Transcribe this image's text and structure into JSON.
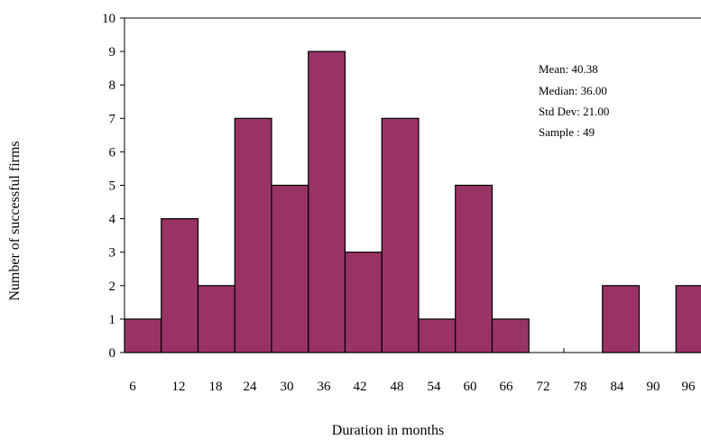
{
  "chart_data": {
    "type": "bar",
    "title": "",
    "xlabel": "Duration in months",
    "ylabel": "Number of successful firms",
    "ylim": [
      0,
      10
    ],
    "yticks": [
      "0",
      "1",
      "2",
      "3",
      "4",
      "5",
      "6",
      "7",
      "8",
      "9",
      "10"
    ],
    "xtick_labels": [
      "6",
      "12",
      "18",
      "24",
      "30",
      "36",
      "42",
      "48",
      "54",
      "60",
      "66",
      "72",
      "78",
      "84",
      "90",
      "96"
    ],
    "bars": [
      {
        "bin": 1,
        "value": 1
      },
      {
        "bin": 2,
        "value": 4
      },
      {
        "bin": 3,
        "value": 2
      },
      {
        "bin": 4,
        "value": 7
      },
      {
        "bin": 5,
        "value": 5
      },
      {
        "bin": 6,
        "value": 9
      },
      {
        "bin": 7,
        "value": 3
      },
      {
        "bin": 8,
        "value": 7
      },
      {
        "bin": 9,
        "value": 1
      },
      {
        "bin": 10,
        "value": 5
      },
      {
        "bin": 11,
        "value": 1
      },
      {
        "bin": 12,
        "value": 0
      },
      {
        "bin": 13,
        "value": 0
      },
      {
        "bin": 14,
        "value": 2
      },
      {
        "bin": 15,
        "value": 0
      },
      {
        "bin": 16,
        "value": 2
      }
    ],
    "bar_color": "#993366",
    "grid": false,
    "legend": "none",
    "stats": {
      "mean": "Mean: 40.38",
      "median": "Median: 36.00",
      "std_dev": "Std Dev: 21.00",
      "sample": "Sample : 49"
    }
  }
}
